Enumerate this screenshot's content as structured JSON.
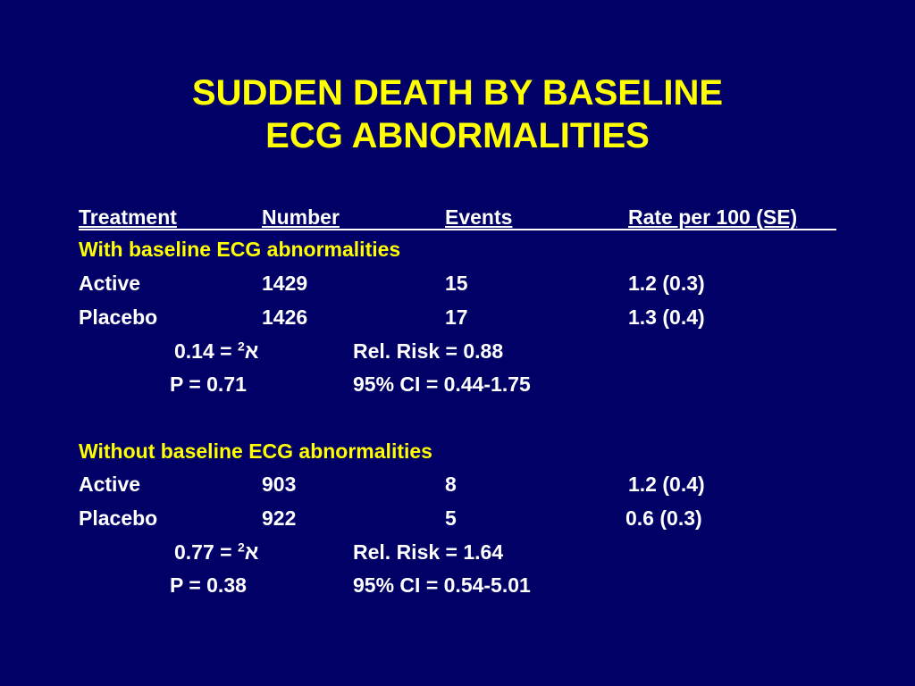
{
  "title": {
    "line1": "SUDDEN DEATH BY BASELINE",
    "line2": "ECG ABNORMALITIES"
  },
  "header": {
    "treatment": "Treatment",
    "number": "Number",
    "events": "Events",
    "rate": "Rate per 100 (SE)"
  },
  "groups": [
    {
      "label": "With baseline ECG abnormalities",
      "rows": [
        {
          "treatment": "Active",
          "number": "1429",
          "events": "15",
          "rate": "1.2 (0.3)"
        },
        {
          "treatment": "Placebo",
          "number": "1426",
          "events": "17",
          "rate": "1.3 (0.4)"
        }
      ],
      "chi_symbol": "א",
      "chi_exp": "2",
      "chi_value": " = 0.14",
      "rel_risk": "Rel. Risk = 0.88",
      "p_value": "P = 0.71",
      "ci": "95% CI = 0.44-1.75"
    },
    {
      "label": "Without baseline ECG abnormalities",
      "rows": [
        {
          "treatment": "Active",
          "number": "903",
          "events": "8",
          "rate": "1.2 (0.4)"
        },
        {
          "treatment": "Placebo",
          "number": "922",
          "events": "5",
          "rate": "0.6 (0.3)"
        }
      ],
      "chi_symbol": "א",
      "chi_exp": "2",
      "chi_value": " = 0.77",
      "rel_risk": "Rel. Risk = 1.64",
      "p_value": "P = 0.38",
      "ci": "95% CI = 0.54-5.01"
    }
  ]
}
